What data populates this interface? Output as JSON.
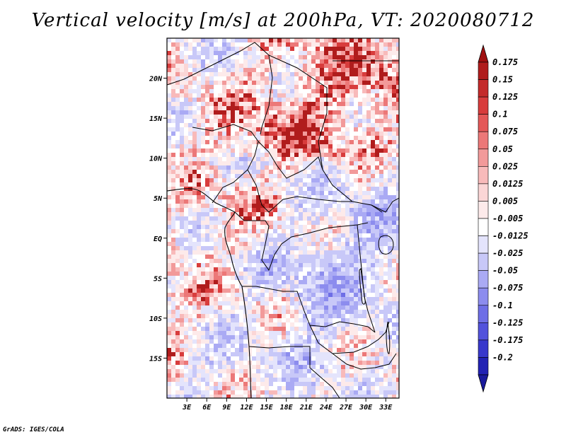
{
  "title": "Vertical velocity [m/s] at 200hPa, VT: 2020080712",
  "credit": "GrADS: IGES/COLA",
  "map": {
    "lat_range": [
      -20,
      25
    ],
    "lon_range": [
      0,
      35
    ],
    "lat_ticks": [
      {
        "value": 20,
        "label": "20N"
      },
      {
        "value": 15,
        "label": "15N"
      },
      {
        "value": 10,
        "label": "10N"
      },
      {
        "value": 5,
        "label": "5N"
      },
      {
        "value": 0,
        "label": "EQ"
      },
      {
        "value": -5,
        "label": "5S"
      },
      {
        "value": -10,
        "label": "10S"
      },
      {
        "value": -15,
        "label": "15S"
      }
    ],
    "lon_ticks": [
      {
        "value": 3,
        "label": "3E"
      },
      {
        "value": 6,
        "label": "6E"
      },
      {
        "value": 9,
        "label": "9E"
      },
      {
        "value": 12,
        "label": "12E"
      },
      {
        "value": 15,
        "label": "15E"
      },
      {
        "value": 18,
        "label": "18E"
      },
      {
        "value": 21,
        "label": "21E"
      },
      {
        "value": 24,
        "label": "24E"
      },
      {
        "value": 27,
        "label": "27E"
      },
      {
        "value": 30,
        "label": "30E"
      },
      {
        "value": 33,
        "label": "33E"
      }
    ]
  },
  "colorbar": {
    "levels": [
      {
        "label": "0.175",
        "color": "#b01c1c"
      },
      {
        "label": "0.15",
        "color": "#c42a2a"
      },
      {
        "label": "0.125",
        "color": "#d83c3c"
      },
      {
        "label": "0.1",
        "color": "#e45858"
      },
      {
        "label": "0.075",
        "color": "#ec7878"
      },
      {
        "label": "0.05",
        "color": "#f29a9a"
      },
      {
        "label": "0.025",
        "color": "#f8baba"
      },
      {
        "label": "0.0125",
        "color": "#fbd6d6"
      },
      {
        "label": "0.005",
        "color": "#fdeaea"
      },
      {
        "label": "-0.005",
        "color": "#ffffff"
      },
      {
        "label": "-0.0125",
        "color": "#e4e4fc"
      },
      {
        "label": "-0.025",
        "color": "#c8c8f8"
      },
      {
        "label": "-0.05",
        "color": "#aaaaf4"
      },
      {
        "label": "-0.075",
        "color": "#8c8cee"
      },
      {
        "label": "-0.1",
        "color": "#6e6ee6"
      },
      {
        "label": "-0.125",
        "color": "#5252dc"
      },
      {
        "label": "-0.175",
        "color": "#3838cc"
      },
      {
        "label": "-0.2",
        "color": "#2222b4"
      }
    ],
    "top_arrow_color": "#a01010",
    "bottom_arrow_color": "#1a1a9c"
  }
}
